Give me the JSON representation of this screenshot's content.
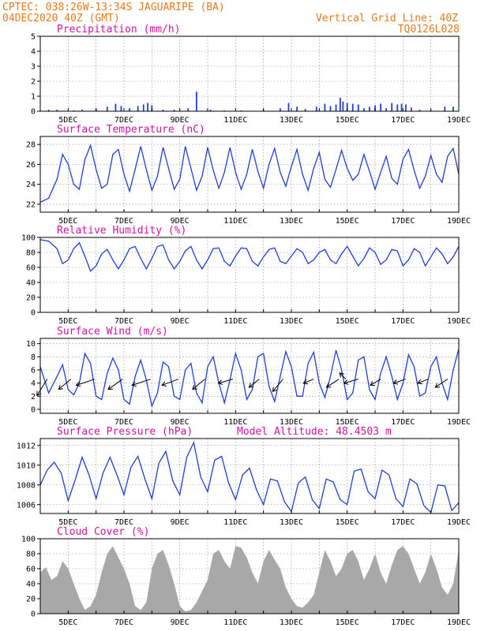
{
  "header": {
    "line1": "CPTEC:   038:26W-13:34S  JAGUARIPE (BA)",
    "line2": "04DEC2020 40Z (GMT)",
    "grid_note": "Vertical Grid Line: 40Z",
    "code": "TQ0126L028"
  },
  "colors": {
    "header": "#e87a1e",
    "title": "#d4139e",
    "line": "#1f3fd6",
    "bar": "#1f3fd6",
    "cloud": "#a8a8a8",
    "wind": "#000000"
  },
  "x_labels": [
    "5DEC",
    "7DEC",
    "9DEC",
    "11DEC",
    "13DEC",
    "15DEC",
    "17DEC",
    "19DEC"
  ],
  "chart_data": [
    {
      "id": "precip",
      "type": "bar",
      "title": "Precipitation (mm/h)",
      "ylim": [
        0,
        5
      ],
      "yticks": [
        "0",
        "1",
        "2",
        "3",
        "4",
        "5"
      ],
      "x_range_days": [
        4.0,
        19.0
      ],
      "values": [
        [
          4.3,
          0.1
        ],
        [
          4.6,
          0.1
        ],
        [
          5.2,
          0.05
        ],
        [
          5.5,
          0.1
        ],
        [
          6.0,
          0.15
        ],
        [
          6.4,
          0.3
        ],
        [
          6.7,
          0.5
        ],
        [
          6.9,
          0.35
        ],
        [
          7.2,
          0.2
        ],
        [
          7.5,
          0.35
        ],
        [
          7.7,
          0.45
        ],
        [
          7.85,
          0.55
        ],
        [
          8.0,
          0.4
        ],
        [
          8.4,
          0.1
        ],
        [
          8.8,
          0.1
        ],
        [
          9.3,
          0.2
        ],
        [
          9.6,
          1.3
        ],
        [
          10.1,
          0.1
        ],
        [
          10.6,
          0.05
        ],
        [
          11.2,
          0.05
        ],
        [
          12.0,
          0.1
        ],
        [
          12.6,
          0.2
        ],
        [
          12.9,
          0.55
        ],
        [
          13.2,
          0.3
        ],
        [
          13.5,
          0.15
        ],
        [
          13.9,
          0.3
        ],
        [
          14.2,
          0.5
        ],
        [
          14.4,
          0.35
        ],
        [
          14.6,
          0.45
        ],
        [
          14.75,
          0.9
        ],
        [
          14.85,
          0.65
        ],
        [
          15.0,
          0.55
        ],
        [
          15.2,
          0.5
        ],
        [
          15.4,
          0.45
        ],
        [
          15.6,
          0.2
        ],
        [
          15.8,
          0.3
        ],
        [
          16.0,
          0.4
        ],
        [
          16.2,
          0.5
        ],
        [
          16.4,
          0.2
        ],
        [
          16.6,
          0.55
        ],
        [
          16.8,
          0.45
        ],
        [
          16.95,
          0.5
        ],
        [
          17.1,
          0.45
        ],
        [
          17.3,
          0.25
        ],
        [
          17.6,
          0.1
        ],
        [
          18.0,
          0.05
        ],
        [
          18.5,
          0.3
        ],
        [
          18.8,
          0.3
        ]
      ]
    },
    {
      "id": "temp",
      "type": "line",
      "title": "Surface Temperature (nC)",
      "ylim": [
        21.2,
        28.8
      ],
      "yticks": [
        "22",
        "24",
        "26",
        "28"
      ],
      "x_range_days": [
        4.0,
        19.0
      ],
      "x": [
        4.0,
        4.3,
        4.6,
        4.8,
        5.0,
        5.2,
        5.4,
        5.6,
        5.8,
        6.0,
        6.2,
        6.4,
        6.6,
        6.8,
        7.0,
        7.2,
        7.4,
        7.6,
        7.8,
        8.0,
        8.2,
        8.4,
        8.6,
        8.8,
        9.0,
        9.2,
        9.4,
        9.6,
        9.8,
        10.0,
        10.2,
        10.4,
        10.6,
        10.8,
        11.0,
        11.2,
        11.4,
        11.6,
        11.8,
        12.0,
        12.2,
        12.4,
        12.6,
        12.8,
        13.0,
        13.2,
        13.4,
        13.6,
        13.8,
        14.0,
        14.2,
        14.4,
        14.6,
        14.8,
        15.0,
        15.2,
        15.4,
        15.6,
        15.8,
        16.0,
        16.2,
        16.4,
        16.6,
        16.8,
        17.0,
        17.2,
        17.4,
        17.6,
        17.8,
        18.0,
        18.2,
        18.4,
        18.6,
        18.8,
        19.0
      ],
      "values": [
        22.2,
        22.6,
        24.5,
        27.0,
        26.0,
        24.0,
        23.5,
        26.5,
        27.9,
        25.5,
        23.6,
        24.0,
        27.0,
        27.5,
        25.0,
        23.3,
        25.5,
        27.8,
        25.5,
        23.4,
        24.8,
        27.7,
        25.6,
        23.5,
        24.5,
        27.8,
        25.6,
        23.4,
        24.8,
        27.7,
        25.4,
        23.6,
        25.2,
        27.7,
        25.2,
        23.5,
        25.0,
        27.5,
        25.3,
        23.6,
        26.0,
        27.6,
        25.2,
        23.8,
        25.8,
        27.5,
        25.0,
        23.4,
        25.6,
        27.2,
        24.5,
        23.7,
        25.5,
        27.4,
        25.6,
        24.4,
        25.0,
        27.0,
        25.3,
        23.5,
        25.2,
        26.8,
        24.6,
        24.0,
        26.5,
        27.5,
        25.4,
        23.6,
        24.8,
        26.9,
        25.0,
        24.2,
        26.8,
        27.6,
        25.0
      ]
    },
    {
      "id": "rh",
      "type": "line",
      "title": "Relative Humidity (%)",
      "ylim": [
        0,
        100
      ],
      "yticks": [
        "0",
        "20",
        "40",
        "60",
        "80",
        "100"
      ],
      "x_range_days": [
        4.0,
        19.0
      ],
      "x": [
        4.0,
        4.3,
        4.6,
        4.8,
        5.0,
        5.2,
        5.4,
        5.6,
        5.8,
        6.0,
        6.2,
        6.4,
        6.6,
        6.8,
        7.0,
        7.2,
        7.4,
        7.6,
        7.8,
        8.0,
        8.2,
        8.4,
        8.6,
        8.8,
        9.0,
        9.2,
        9.4,
        9.6,
        9.8,
        10.0,
        10.2,
        10.4,
        10.6,
        10.8,
        11.0,
        11.2,
        11.4,
        11.6,
        11.8,
        12.0,
        12.2,
        12.4,
        12.6,
        12.8,
        13.0,
        13.2,
        13.4,
        13.6,
        13.8,
        14.0,
        14.2,
        14.4,
        14.6,
        14.8,
        15.0,
        15.2,
        15.4,
        15.6,
        15.8,
        16.0,
        16.2,
        16.4,
        16.6,
        16.8,
        17.0,
        17.2,
        17.4,
        17.6,
        17.8,
        18.0,
        18.2,
        18.4,
        18.6,
        18.8,
        19.0
      ],
      "values": [
        97,
        95,
        85,
        65,
        70,
        85,
        93,
        75,
        55,
        62,
        78,
        84,
        70,
        58,
        70,
        85,
        88,
        72,
        58,
        72,
        88,
        90,
        70,
        58,
        68,
        82,
        88,
        70,
        58,
        70,
        85,
        86,
        68,
        62,
        75,
        86,
        85,
        68,
        62,
        74,
        84,
        86,
        68,
        65,
        75,
        85,
        80,
        65,
        70,
        80,
        84,
        70,
        65,
        78,
        88,
        75,
        62,
        72,
        86,
        80,
        64,
        70,
        84,
        82,
        62,
        70,
        85,
        80,
        62,
        74,
        86,
        78,
        65,
        74,
        88
      ]
    },
    {
      "id": "wind",
      "type": "line",
      "title": "Surface Wind (m/s)",
      "ylim": [
        -0.6,
        10.8
      ],
      "yticks": [
        "0",
        "2",
        "4",
        "6",
        "8",
        "10"
      ],
      "x_range_days": [
        4.0,
        19.0
      ],
      "x": [
        4.0,
        4.3,
        4.6,
        4.8,
        5.0,
        5.2,
        5.4,
        5.6,
        5.8,
        6.0,
        6.2,
        6.4,
        6.6,
        6.8,
        7.0,
        7.2,
        7.4,
        7.6,
        7.8,
        8.0,
        8.2,
        8.4,
        8.6,
        8.8,
        9.0,
        9.2,
        9.4,
        9.6,
        9.8,
        10.0,
        10.2,
        10.4,
        10.6,
        10.8,
        11.0,
        11.2,
        11.4,
        11.6,
        11.8,
        12.0,
        12.2,
        12.4,
        12.6,
        12.8,
        13.0,
        13.2,
        13.4,
        13.6,
        13.8,
        14.0,
        14.2,
        14.4,
        14.6,
        14.8,
        15.0,
        15.2,
        15.4,
        15.6,
        15.8,
        16.0,
        16.2,
        16.4,
        16.6,
        16.8,
        17.0,
        17.2,
        17.4,
        17.6,
        17.8,
        18.0,
        18.2,
        18.4,
        18.6,
        18.8,
        19.0
      ],
      "values": [
        6.5,
        2.5,
        5.0,
        6.8,
        3.0,
        2.2,
        4.0,
        8.5,
        7.0,
        2.0,
        1.5,
        5.5,
        7.8,
        6.0,
        1.5,
        0.8,
        5.0,
        7.5,
        4.5,
        0.5,
        2.5,
        7.2,
        6.5,
        2.0,
        1.5,
        6.0,
        7.0,
        2.5,
        1.0,
        6.5,
        8.0,
        4.0,
        1.0,
        4.5,
        8.5,
        6.0,
        1.5,
        3.0,
        8.0,
        8.5,
        3.5,
        1.2,
        5.0,
        8.8,
        6.5,
        2.0,
        2.0,
        7.0,
        8.7,
        4.0,
        1.8,
        5.0,
        9.0,
        6.0,
        1.5,
        2.5,
        7.5,
        8.0,
        3.0,
        1.5,
        5.5,
        8.0,
        5.0,
        1.5,
        4.0,
        8.3,
        6.5,
        2.0,
        2.5,
        6.5,
        8.0,
        4.0,
        1.5,
        6.0,
        9.2
      ],
      "arrows": {
        "x": [
          4.25,
          5.1,
          5.95,
          6.95,
          7.95,
          8.95,
          9.9,
          10.9,
          11.85,
          12.7,
          13.8,
          14.7,
          14.95,
          15.4,
          16.2,
          17.1,
          17.9,
          18.6
        ],
        "u": [
          -0.5,
          -0.6,
          -0.9,
          -0.7,
          -0.9,
          -0.8,
          -0.6,
          -0.7,
          -0.5,
          -0.5,
          -0.5,
          -0.6,
          -0.3,
          -0.7,
          -0.5,
          -0.6,
          -0.5,
          -0.6
        ],
        "v": [
          -0.8,
          -0.5,
          -0.3,
          -0.5,
          -0.3,
          -0.3,
          -0.5,
          -0.2,
          -0.4,
          -0.6,
          -0.2,
          -0.4,
          0.3,
          -0.2,
          -0.3,
          -0.2,
          -0.2,
          -0.4
        ]
      }
    },
    {
      "id": "pres",
      "type": "line",
      "title": "Surface Pressure (hPa)",
      "note": "Model Altitude: 48.4503 m",
      "ylim": [
        1005.1,
        1012.7
      ],
      "yticks": [
        "1006",
        "1008",
        "1010",
        "1012"
      ],
      "x_range_days": [
        4.0,
        19.0
      ],
      "x": [
        4.0,
        4.25,
        4.5,
        4.75,
        5.0,
        5.25,
        5.5,
        5.75,
        6.0,
        6.25,
        6.5,
        6.75,
        7.0,
        7.25,
        7.5,
        7.75,
        8.0,
        8.25,
        8.5,
        8.75,
        9.0,
        9.25,
        9.5,
        9.75,
        10.0,
        10.25,
        10.5,
        10.75,
        11.0,
        11.25,
        11.5,
        11.75,
        12.0,
        12.25,
        12.5,
        12.75,
        13.0,
        13.25,
        13.5,
        13.75,
        14.0,
        14.25,
        14.5,
        14.75,
        15.0,
        15.25,
        15.5,
        15.75,
        16.0,
        16.25,
        16.5,
        16.75,
        17.0,
        17.25,
        17.5,
        17.75,
        18.0,
        18.25,
        18.5,
        18.75,
        19.0
      ],
      "values": [
        1008.0,
        1009.5,
        1010.3,
        1009.2,
        1006.4,
        1008.5,
        1010.8,
        1009.0,
        1006.6,
        1009.2,
        1010.8,
        1009.0,
        1007.0,
        1009.8,
        1010.9,
        1008.6,
        1006.6,
        1010.2,
        1011.4,
        1008.4,
        1007.0,
        1010.8,
        1012.3,
        1008.8,
        1007.3,
        1010.5,
        1010.9,
        1008.2,
        1006.5,
        1009.0,
        1009.7,
        1007.5,
        1006.0,
        1008.6,
        1008.4,
        1006.3,
        1005.3,
        1008.2,
        1008.8,
        1006.5,
        1005.6,
        1008.6,
        1008.3,
        1006.5,
        1006.0,
        1009.4,
        1009.6,
        1007.3,
        1006.6,
        1009.5,
        1009.0,
        1006.6,
        1005.8,
        1008.6,
        1008.1,
        1005.9,
        1005.2,
        1008.0,
        1007.9,
        1005.4,
        1006.2
      ]
    },
    {
      "id": "cloud",
      "type": "area",
      "title": "Cloud Cover (%)",
      "ylim": [
        0,
        100
      ],
      "yticks": [
        "0",
        "20",
        "40",
        "60",
        "80",
        "100"
      ],
      "x_range_days": [
        4.0,
        19.0
      ],
      "x": [
        4.0,
        4.2,
        4.4,
        4.6,
        4.8,
        5.0,
        5.2,
        5.4,
        5.6,
        5.8,
        6.0,
        6.2,
        6.4,
        6.6,
        6.8,
        7.0,
        7.2,
        7.4,
        7.6,
        7.8,
        8.0,
        8.2,
        8.4,
        8.6,
        8.8,
        9.0,
        9.2,
        9.4,
        9.6,
        9.8,
        10.0,
        10.2,
        10.4,
        10.6,
        10.8,
        11.0,
        11.2,
        11.4,
        11.6,
        11.8,
        12.0,
        12.2,
        12.4,
        12.6,
        12.8,
        13.0,
        13.2,
        13.4,
        13.6,
        13.8,
        14.0,
        14.2,
        14.4,
        14.6,
        14.8,
        15.0,
        15.2,
        15.4,
        15.6,
        15.8,
        16.0,
        16.2,
        16.4,
        16.6,
        16.8,
        17.0,
        17.2,
        17.4,
        17.6,
        17.8,
        18.0,
        18.2,
        18.4,
        18.6,
        18.8,
        19.0
      ],
      "values": [
        55,
        62,
        45,
        50,
        70,
        60,
        40,
        20,
        5,
        10,
        25,
        55,
        80,
        90,
        75,
        60,
        40,
        10,
        5,
        15,
        60,
        80,
        85,
        65,
        40,
        10,
        3,
        5,
        15,
        30,
        45,
        80,
        85,
        70,
        60,
        90,
        88,
        75,
        55,
        40,
        70,
        85,
        72,
        60,
        35,
        20,
        10,
        8,
        15,
        25,
        55,
        85,
        70,
        50,
        60,
        80,
        85,
        70,
        45,
        60,
        80,
        55,
        40,
        65,
        85,
        90,
        80,
        60,
        40,
        55,
        80,
        60,
        35,
        25,
        40,
        85
      ]
    }
  ]
}
